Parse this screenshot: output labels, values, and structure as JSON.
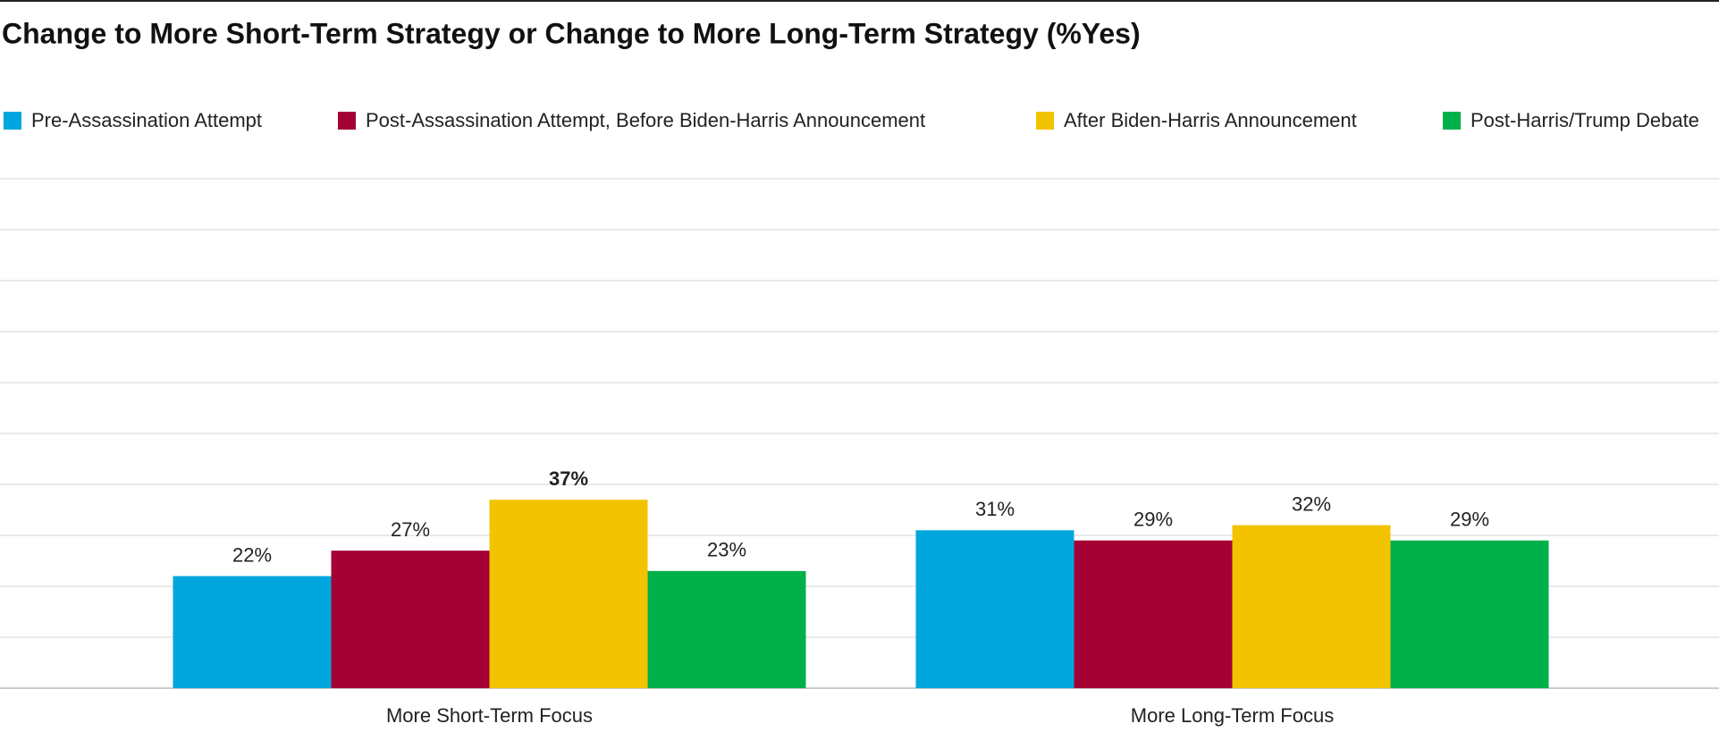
{
  "chart_data": {
    "type": "bar",
    "title": "Change to More Short-Term Strategy or Change to More Long-Term Strategy (%Yes)",
    "categories": [
      "More Short-Term Focus",
      "More Long-Term Focus"
    ],
    "series": [
      {
        "name": "Pre-Assassination Attempt",
        "color": "#00a6de",
        "values": [
          22,
          31
        ],
        "value_labels": [
          "22%",
          "31%"
        ]
      },
      {
        "name": "Post-Assassination Attempt, Before Biden-Harris Announcement",
        "color": "#a50034",
        "values": [
          27,
          29
        ],
        "value_labels": [
          "27%",
          "29%"
        ]
      },
      {
        "name": "After Biden-Harris Announcement",
        "color": "#f3c300",
        "values": [
          37,
          32
        ],
        "value_labels": [
          "37%",
          "32%"
        ]
      },
      {
        "name": "Post-Harris/Trump Debate",
        "color": "#00b04a",
        "values": [
          23,
          29
        ],
        "value_labels": [
          "23%",
          "29%"
        ]
      }
    ],
    "ylim": [
      0,
      100
    ],
    "yticks": [
      0,
      10,
      20,
      30,
      40,
      50,
      60,
      70,
      80,
      90,
      100
    ],
    "grid": true,
    "legend": "top"
  }
}
